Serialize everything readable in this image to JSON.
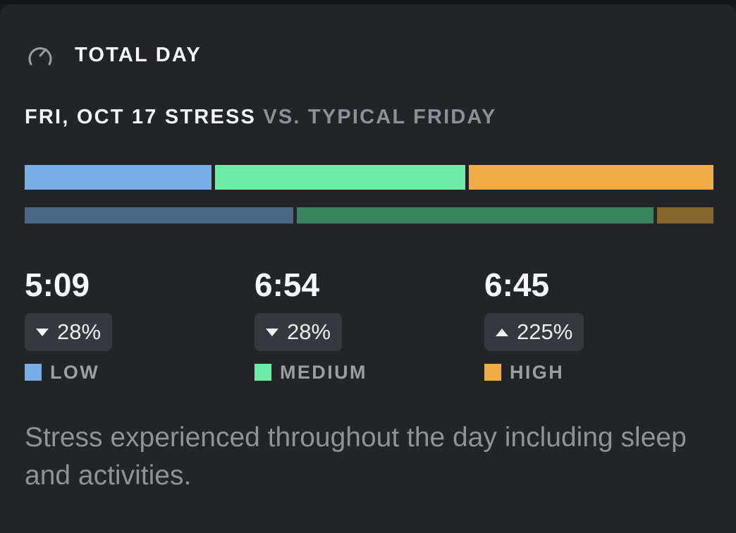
{
  "header": {
    "title": "TOTAL DAY",
    "icon": "gauge-icon"
  },
  "subtitle": {
    "main": "FRI, OCT 17 STRESS",
    "comparison": "VS. TYPICAL FRIDAY"
  },
  "chart_data": {
    "type": "stacked-bar",
    "categories": [
      "LOW",
      "MEDIUM",
      "HIGH"
    ],
    "series": [
      {
        "values_hours": [
          5.15,
          6.9,
          6.75
        ],
        "colors": [
          "#79aee6",
          "#6ceda6",
          "#f3ab48"
        ]
      },
      {
        "values_fraction": [
          0.38,
          0.505,
          0.08
        ],
        "colors": [
          "#4c6787",
          "#3a8461",
          "#876630"
        ]
      }
    ]
  },
  "stats": [
    {
      "value": "5:09",
      "delta": "28%",
      "direction": "down",
      "label": "LOW",
      "color": "#79aee6"
    },
    {
      "value": "6:54",
      "delta": "28%",
      "direction": "down",
      "label": "MEDIUM",
      "color": "#6ceda6"
    },
    {
      "value": "6:45",
      "delta": "225%",
      "direction": "up",
      "label": "HIGH",
      "color": "#f3ab48"
    }
  ],
  "description": "Stress experienced throughout the day including sleep and activities.",
  "colors": {
    "background": "#222428",
    "pill": "#35383d",
    "muted_text": "#8f9297"
  }
}
